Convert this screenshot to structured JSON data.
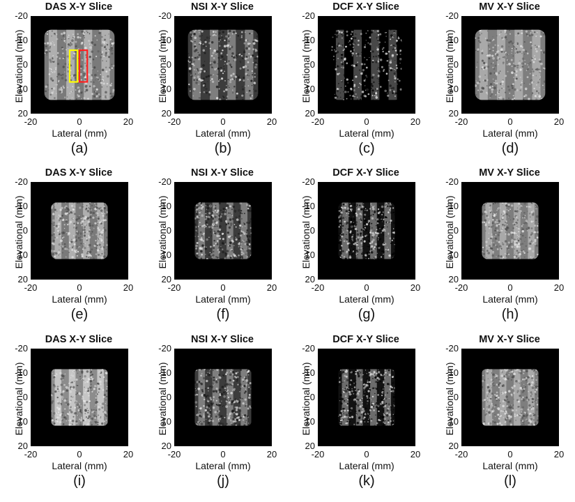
{
  "panels": [
    {
      "title": "DAS X-Y Slice",
      "caption": "(a)",
      "method": "DAS",
      "row": 0,
      "col": 0,
      "roi_boxes": [
        {
          "color": "#ffff00"
        },
        {
          "color": "#ff2020"
        }
      ]
    },
    {
      "title": "NSI X-Y Slice",
      "caption": "(b)",
      "method": "NSI",
      "row": 0,
      "col": 1
    },
    {
      "title": "DCF X-Y Slice",
      "caption": "(c)",
      "method": "DCF",
      "row": 0,
      "col": 2
    },
    {
      "title": "MV X-Y Slice",
      "caption": "(d)",
      "method": "MV",
      "row": 0,
      "col": 3
    },
    {
      "title": "DAS X-Y Slice",
      "caption": "(e)",
      "method": "DAS",
      "row": 1,
      "col": 0
    },
    {
      "title": "NSI X-Y Slice",
      "caption": "(f)",
      "method": "NSI",
      "row": 1,
      "col": 1
    },
    {
      "title": "DCF X-Y Slice",
      "caption": "(g)",
      "method": "DCF",
      "row": 1,
      "col": 2
    },
    {
      "title": "MV X-Y Slice",
      "caption": "(h)",
      "method": "MV",
      "row": 1,
      "col": 3
    },
    {
      "title": "DAS X-Y Slice",
      "caption": "(i)",
      "method": "DAS",
      "row": 2,
      "col": 0
    },
    {
      "title": "NSI X-Y Slice",
      "caption": "(j)",
      "method": "NSI",
      "row": 2,
      "col": 1
    },
    {
      "title": "DCF X-Y Slice",
      "caption": "(k)",
      "method": "DCF",
      "row": 2,
      "col": 2
    },
    {
      "title": "MV X-Y Slice",
      "caption": "(l)",
      "method": "MV",
      "row": 2,
      "col": 3
    }
  ],
  "axes": {
    "xlabel": "Lateral (mm)",
    "ylabel": "Elevational (mm)",
    "xticks": [
      "-20",
      "0",
      "20"
    ],
    "yticks": [
      "-20",
      "-10",
      "0",
      "10",
      "20"
    ],
    "xlim": [
      -20,
      20
    ],
    "ylim": [
      -20,
      20
    ]
  },
  "colors": {
    "background": "#000000",
    "roi_yellow": "#ffff00",
    "roi_red": "#ff2020"
  }
}
